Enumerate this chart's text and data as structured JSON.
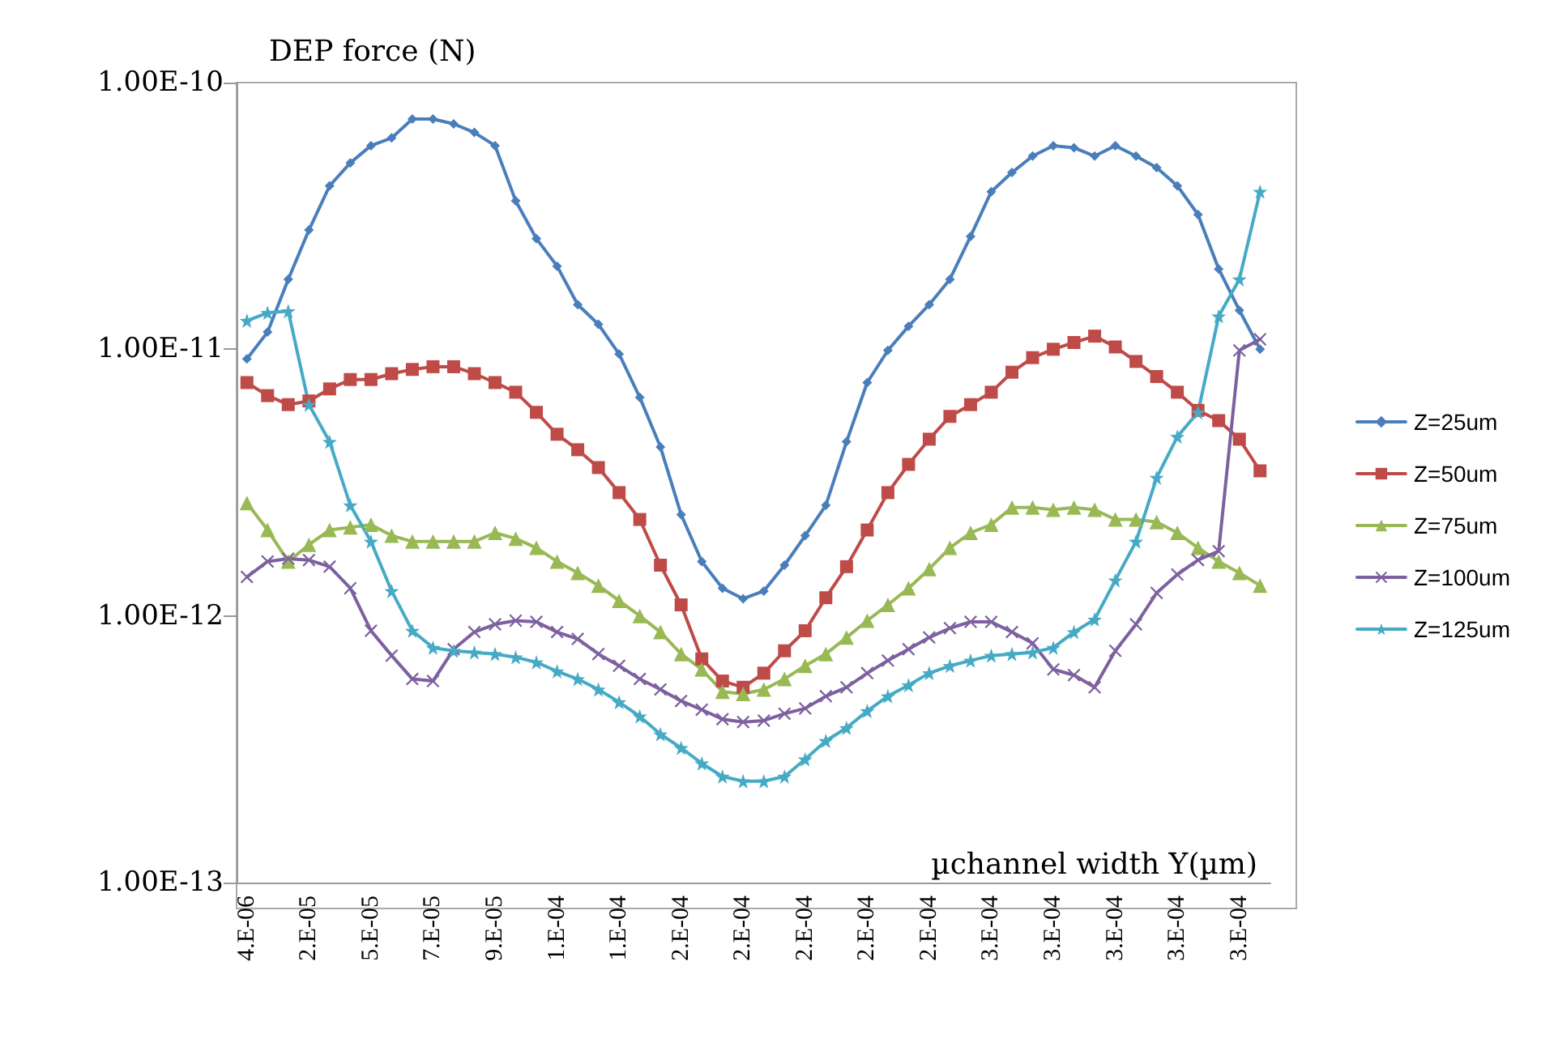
{
  "chart_data": {
    "type": "line",
    "xlabel": "µchannel width Y(µm)",
    "ylabel": "DEP force (N)",
    "categories": [
      "4.E-06",
      null,
      null,
      "2.E-05",
      null,
      null,
      "5.E-05",
      null,
      null,
      "7.E-05",
      null,
      null,
      "9.E-05",
      null,
      null,
      "1.E-04",
      null,
      null,
      "1.E-04",
      null,
      null,
      "2.E-04",
      null,
      null,
      "2.E-04",
      null,
      null,
      "2.E-04",
      null,
      null,
      "2.E-04",
      null,
      null,
      "2.E-04",
      null,
      null,
      "3.E-04",
      null,
      null,
      "3.E-04",
      null,
      null,
      "3.E-04",
      null,
      null,
      "3.E-04",
      null,
      null,
      "3.E-04",
      null
    ],
    "log": "y",
    "ylim": [
      1e-13,
      1e-10
    ],
    "yticks": [
      {
        "value": 1e-13,
        "label": "1.00E-13"
      },
      {
        "value": 1e-12,
        "label": "1.00E-12"
      },
      {
        "value": 1e-11,
        "label": "1.00E-11"
      },
      {
        "value": 1e-10,
        "label": "1.00E-10"
      }
    ],
    "grid": false,
    "legend": "right",
    "line_style": "solid",
    "series": [
      {
        "name": "Z=25um",
        "color": "#4a7ebb",
        "marker": "diamond",
        "values": [
          9.2e-12,
          1.16e-11,
          1.83e-11,
          2.8e-11,
          4.1e-11,
          5e-11,
          5.8e-11,
          6.2e-11,
          7.3e-11,
          7.3e-11,
          7e-11,
          6.5e-11,
          5.8e-11,
          3.6e-11,
          2.6e-11,
          2.05e-11,
          1.47e-11,
          1.24e-11,
          9.6e-12,
          6.6e-12,
          4.3e-12,
          2.4e-12,
          1.6e-12,
          1.27e-12,
          1.16e-12,
          1.24e-12,
          1.55e-12,
          2e-12,
          2.6e-12,
          4.5e-12,
          7.5e-12,
          9.9e-12,
          1.22e-11,
          1.47e-11,
          1.83e-11,
          2.65e-11,
          3.9e-11,
          4.6e-11,
          5.3e-11,
          5.8e-11,
          5.7e-11,
          5.3e-11,
          5.8e-11,
          5.3e-11,
          4.8e-11,
          4.1e-11,
          3.2e-11,
          2e-11,
          1.4e-11,
          1e-11
        ]
      },
      {
        "name": "Z=50um",
        "color": "#be4b48",
        "marker": "square",
        "values": [
          7.5e-12,
          6.7e-12,
          6.2e-12,
          6.4e-12,
          7.1e-12,
          7.7e-12,
          7.7e-12,
          8.1e-12,
          8.4e-12,
          8.6e-12,
          8.6e-12,
          8.1e-12,
          7.5e-12,
          6.9e-12,
          5.8e-12,
          4.8e-12,
          4.2e-12,
          3.6e-12,
          2.9e-12,
          2.3e-12,
          1.55e-12,
          1.1e-12,
          6.9e-13,
          5.7e-13,
          5.4e-13,
          6.1e-13,
          7.4e-13,
          8.8e-13,
          1.17e-12,
          1.53e-12,
          2.1e-12,
          2.9e-12,
          3.7e-12,
          4.6e-12,
          5.6e-12,
          6.2e-12,
          6.9e-12,
          8.2e-12,
          9.3e-12,
          1e-11,
          1.06e-11,
          1.12e-11,
          1.02e-11,
          9e-12,
          7.9e-12,
          6.9e-12,
          5.9e-12,
          5.4e-12,
          4.6e-12,
          3.5e-12
        ]
      },
      {
        "name": "Z=75um",
        "color": "#98b954",
        "marker": "triangle",
        "values": [
          2.65e-12,
          2.1e-12,
          1.6e-12,
          1.85e-12,
          2.1e-12,
          2.15e-12,
          2.2e-12,
          2e-12,
          1.9e-12,
          1.9e-12,
          1.9e-12,
          1.9e-12,
          2.05e-12,
          1.95e-12,
          1.8e-12,
          1.6e-12,
          1.45e-12,
          1.3e-12,
          1.14e-12,
          1e-12,
          8.7e-13,
          7.2e-13,
          6.3e-13,
          5.2e-13,
          5.1e-13,
          5.3e-13,
          5.8e-13,
          6.5e-13,
          7.2e-13,
          8.3e-13,
          9.6e-13,
          1.1e-12,
          1.27e-12,
          1.5e-12,
          1.8e-12,
          2.05e-12,
          2.2e-12,
          2.55e-12,
          2.55e-12,
          2.5e-12,
          2.55e-12,
          2.5e-12,
          2.3e-12,
          2.3e-12,
          2.25e-12,
          2.05e-12,
          1.8e-12,
          1.6e-12,
          1.45e-12,
          1.3e-12
        ]
      },
      {
        "name": "Z=100um",
        "color": "#7d60a0",
        "marker": "cross",
        "values": [
          1.4e-12,
          1.6e-12,
          1.64e-12,
          1.62e-12,
          1.53e-12,
          1.27e-12,
          8.8e-13,
          7.1e-13,
          5.8e-13,
          5.7e-13,
          7.5e-13,
          8.7e-13,
          9.3e-13,
          9.6e-13,
          9.5e-13,
          8.7e-13,
          8.2e-13,
          7.2e-13,
          6.5e-13,
          5.8e-13,
          5.3e-13,
          4.8e-13,
          4.45e-13,
          4.1e-13,
          4e-13,
          4.05e-13,
          4.3e-13,
          4.5e-13,
          5e-13,
          5.4e-13,
          6.1e-13,
          6.8e-13,
          7.5e-13,
          8.3e-13,
          9e-13,
          9.5e-13,
          9.5e-13,
          8.7e-13,
          7.9e-13,
          6.3e-13,
          6e-13,
          5.4e-13,
          7.4e-13,
          9.3e-13,
          1.22e-12,
          1.43e-12,
          1.62e-12,
          1.75e-12,
          9.9e-12,
          1.09e-11
        ]
      },
      {
        "name": "Z=125um",
        "color": "#46aac5",
        "marker": "star",
        "values": [
          1.28e-11,
          1.37e-11,
          1.39e-11,
          6.2e-12,
          4.5e-12,
          2.6e-12,
          1.9e-12,
          1.24e-12,
          8.8e-13,
          7.6e-13,
          7.4e-13,
          7.3e-13,
          7.2e-13,
          7e-13,
          6.7e-13,
          6.2e-13,
          5.8e-13,
          5.3e-13,
          4.75e-13,
          4.2e-13,
          3.6e-13,
          3.2e-13,
          2.8e-13,
          2.5e-13,
          2.4e-13,
          2.4e-13,
          2.5e-13,
          2.9e-13,
          3.4e-13,
          3.8e-13,
          4.4e-13,
          5e-13,
          5.5e-13,
          6.1e-13,
          6.5e-13,
          6.8e-13,
          7.1e-13,
          7.2e-13,
          7.3e-13,
          7.6e-13,
          8.7e-13,
          9.7e-13,
          1.36e-12,
          1.9e-12,
          3.3e-12,
          4.7e-12,
          5.8e-12,
          1.33e-11,
          1.83e-11,
          3.9e-11
        ]
      }
    ]
  }
}
